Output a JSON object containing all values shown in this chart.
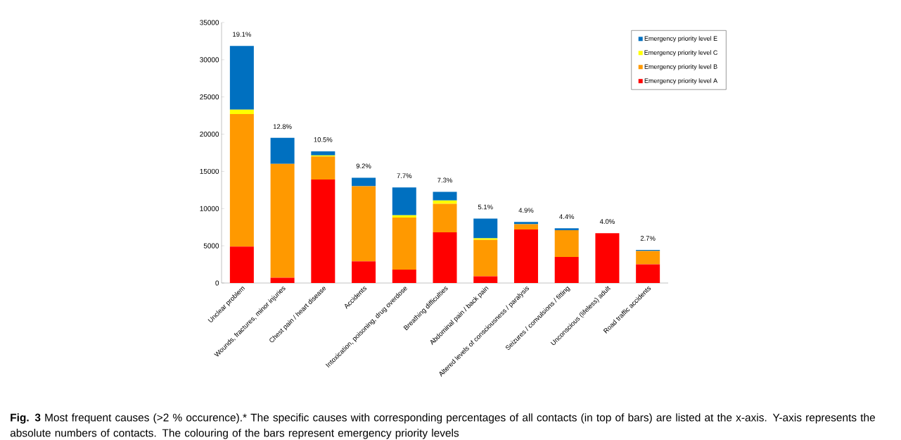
{
  "chart_data": {
    "type": "bar",
    "stacked": true,
    "categories": [
      "Unclear problem",
      "Wounds, fractures, minor injuries",
      "Chest pain / heart disease",
      "Accidents",
      "Intoxication, poisoning, drug overdose",
      "Breathing difficulties",
      "Abdominal pain / back pain",
      "Altered levels of consciousness / paralysis",
      "Seizures / convulsions / fitting",
      "Unconscious (lifeless) adult",
      "Road traffic accidents"
    ],
    "series": [
      {
        "name": "Emergency priority level A",
        "color": "#ff0000",
        "values": [
          4900,
          700,
          13900,
          2900,
          1800,
          6800,
          900,
          7200,
          3500,
          6700,
          2500
        ]
      },
      {
        "name": "Emergency priority level B",
        "color": "#ff9900",
        "values": [
          17800,
          15300,
          3100,
          10100,
          7000,
          3850,
          4900,
          700,
          3600,
          0,
          1800
        ]
      },
      {
        "name": "Emergency priority level C",
        "color": "#ffff00",
        "values": [
          600,
          0,
          150,
          0,
          300,
          450,
          200,
          0,
          0,
          0,
          0
        ]
      },
      {
        "name": "Emergency priority level E",
        "color": "#0070c0",
        "values": [
          8550,
          3500,
          550,
          1150,
          3750,
          1150,
          2650,
          300,
          250,
          0,
          150
        ]
      }
    ],
    "ylim": [
      0,
      35000
    ],
    "yticks": [
      0,
      5000,
      10000,
      15000,
      20000,
      25000,
      30000,
      35000
    ],
    "legend": "top right",
    "annotations": [
      {
        "text": "19.1%",
        "x": "Unclear problem",
        "y": 31850
      },
      {
        "text": "12.8%",
        "x": "Wounds, fractures, minor injuries",
        "y": 19450
      },
      {
        "text": "10.5%",
        "x": "Chest pain / heart disease",
        "y": 17700
      },
      {
        "text": "9.2%",
        "x": "Accidents",
        "y": 14150
      },
      {
        "text": "7.7%",
        "x": "Intoxication, poisoning, drug overdose",
        "y": 12850
      },
      {
        "text": "7.3%",
        "x": "Breathing difficulties",
        "y": 12250
      },
      {
        "text": "5.1%",
        "x": "Abdominal pain / back pain",
        "y": 8650
      },
      {
        "text": "4.9%",
        "x": "Altered levels of consciousness / paralysis",
        "y": 8200
      },
      {
        "text": "4.4%",
        "x": "Seizures / convulsions / fitting",
        "y": 7350
      },
      {
        "text": "4.0%",
        "x": "Unconscious (lifeless) adult",
        "y": 6700
      },
      {
        "text": "2.7%",
        "x": "Road traffic accidents",
        "y": 4450
      },
      "**Fig. 3** Most frequent causes (>2 % occurence).* The specific causes with corresponding percentages of all contacts (in top of bars) are listed at the x-axis. Y-axis represents the absolute numbers of contacts. The colouring of the bars represent emergency priority levels"
    ]
  }
}
